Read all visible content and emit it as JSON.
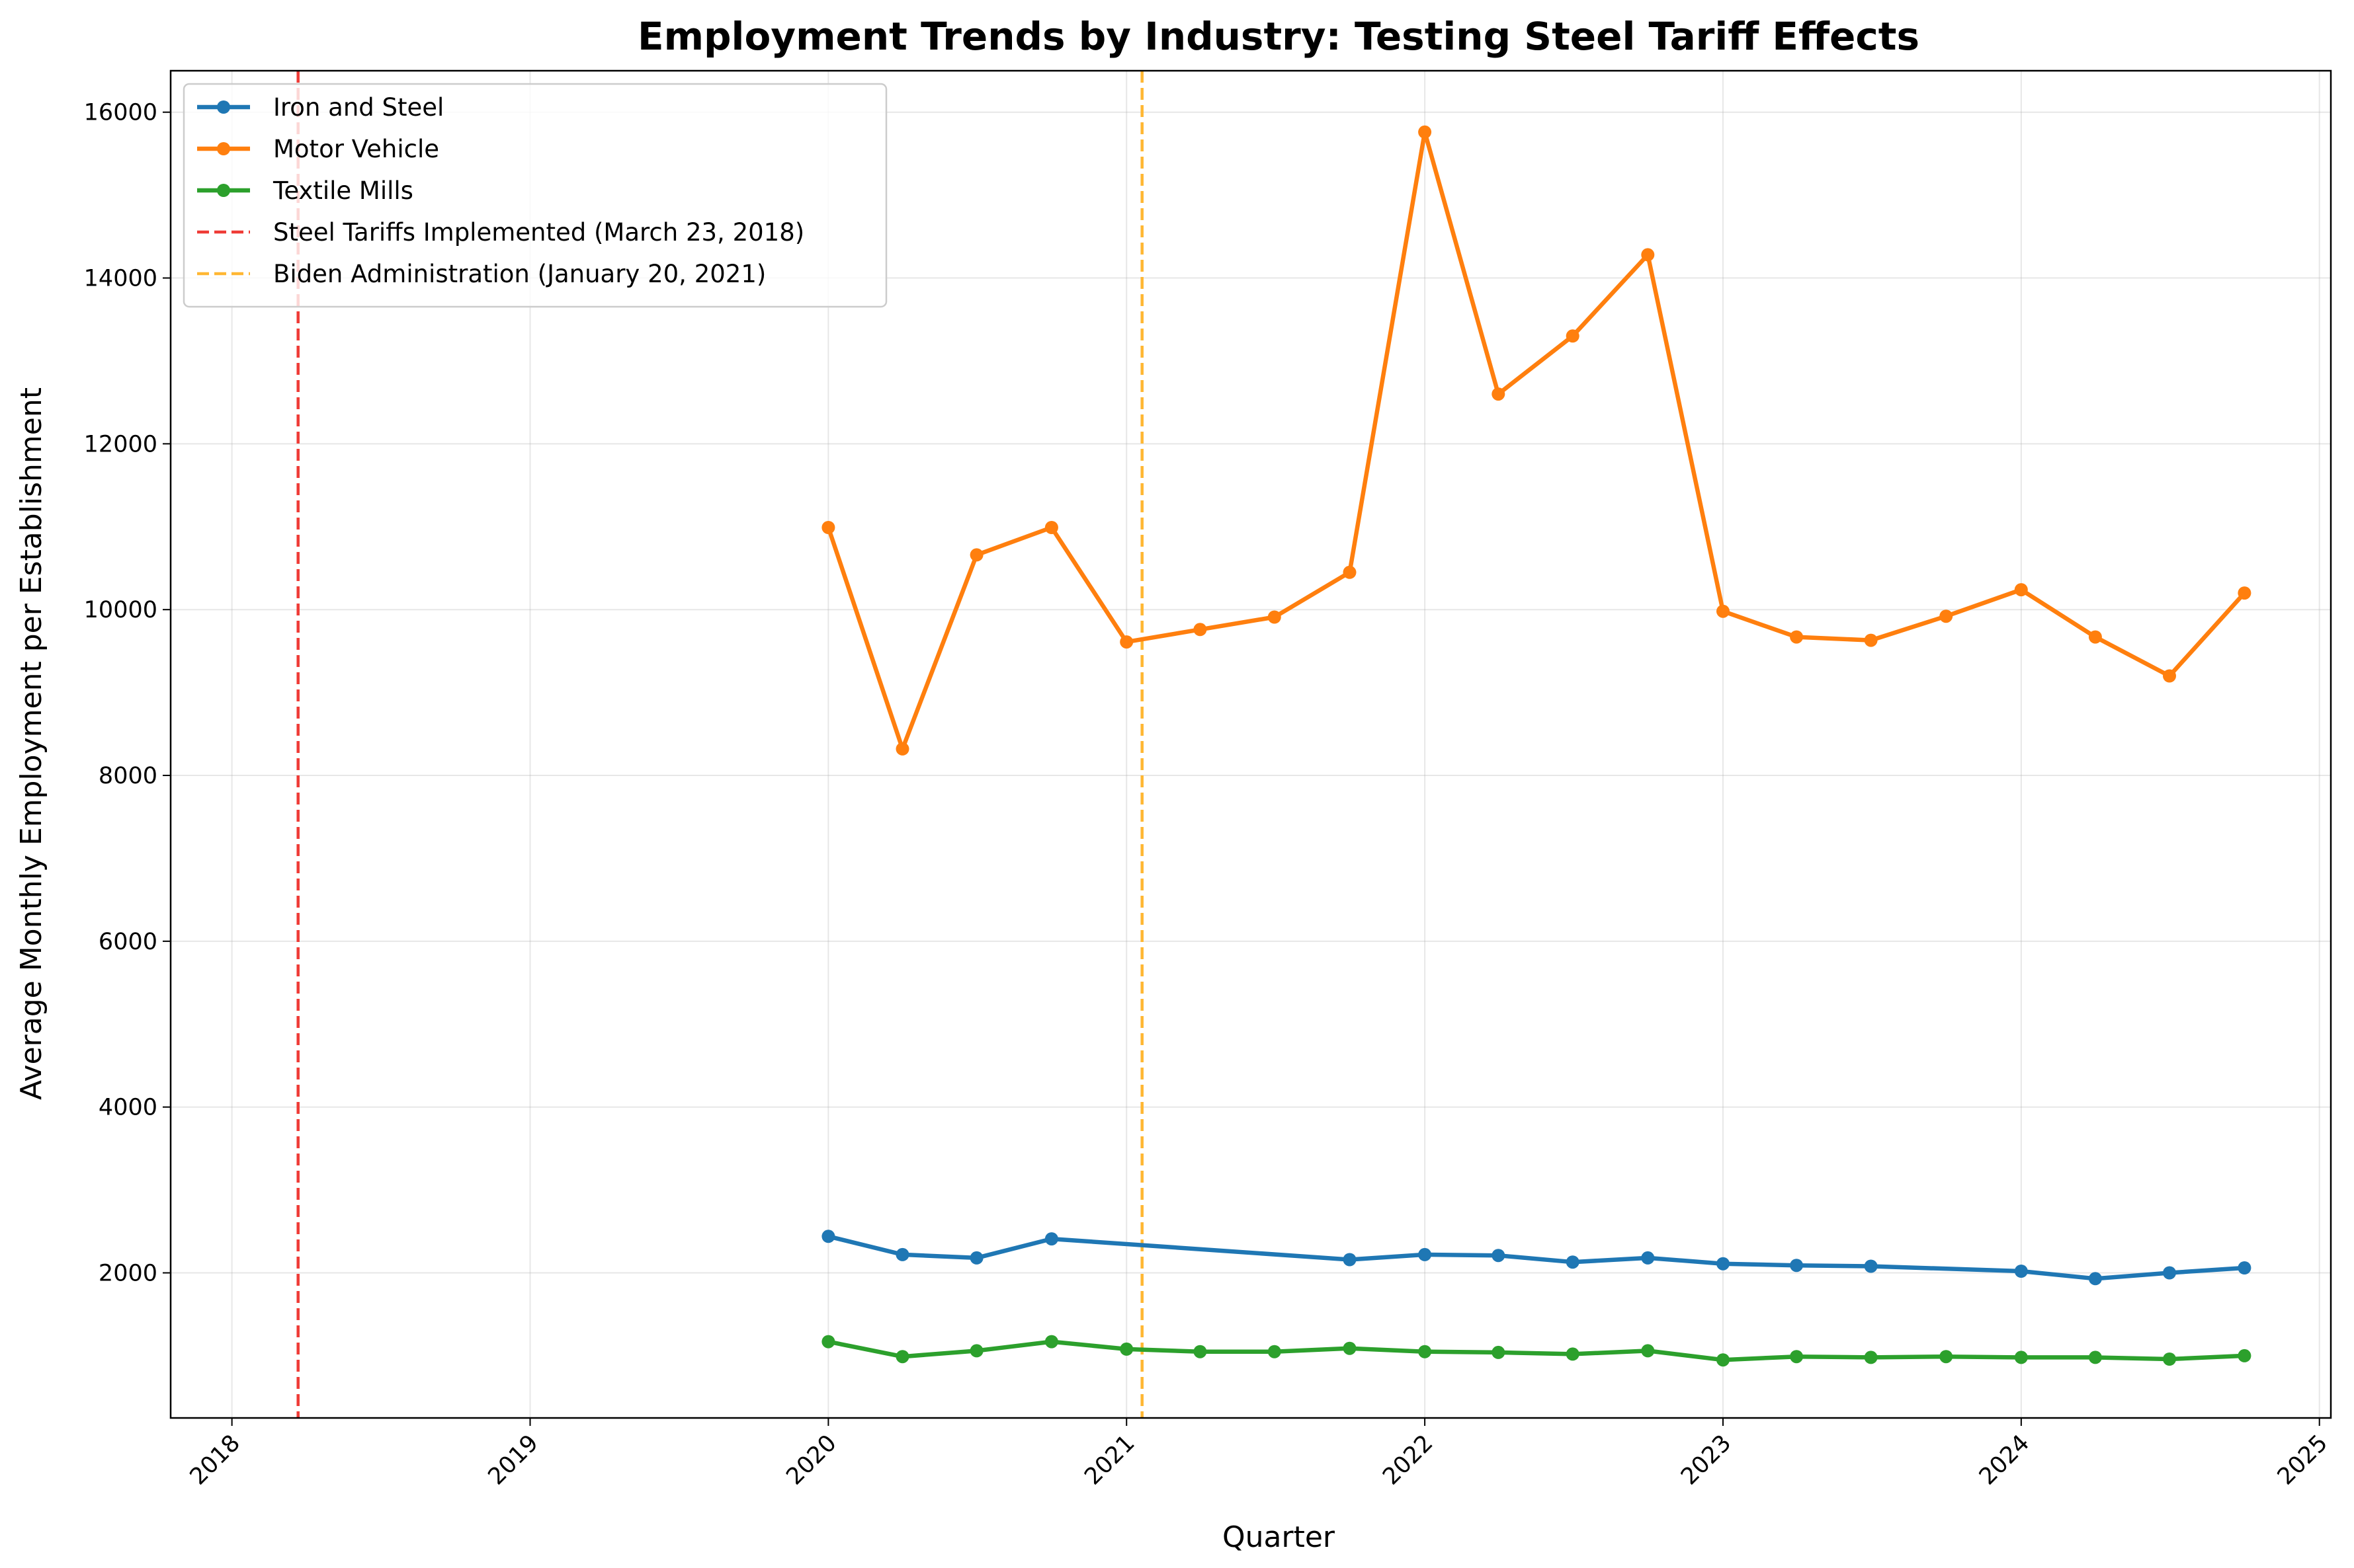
{
  "chart_data": {
    "type": "line",
    "title": "Employment Trends by Industry: Testing Steel Tariff Effects",
    "xlabel": "Quarter",
    "ylabel": "Average Monthly Employment per Establishment",
    "xlim": [
      "2017-10-18",
      "2025-01-15"
    ],
    "ylim": [
      250,
      16500
    ],
    "x_ticks": [
      "2018",
      "2019",
      "2020",
      "2021",
      "2022",
      "2023",
      "2024",
      "2025"
    ],
    "y_ticks": [
      "2000",
      "4000",
      "6000",
      "8000",
      "10000",
      "12000",
      "14000",
      "16000"
    ],
    "grid": true,
    "legend_position": "top-left",
    "series": [
      {
        "name": "Iron and Steel",
        "color": "#1f77b4",
        "x": [
          "2020-01-01",
          "2020-04-01",
          "2020-07-01",
          "2020-10-01",
          "2021-10-01",
          "2022-01-01",
          "2022-04-01",
          "2022-07-01",
          "2022-10-01",
          "2023-01-01",
          "2023-04-01",
          "2023-07-01",
          "2024-01-01",
          "2024-04-01",
          "2024-07-01",
          "2024-10-01"
        ],
        "y": [
          2440,
          2220,
          2180,
          2410,
          2160,
          2220,
          2210,
          2130,
          2180,
          2110,
          2090,
          2080,
          2020,
          1930,
          2000,
          2060
        ]
      },
      {
        "name": "Motor Vehicle",
        "color": "#ff7f0e",
        "x": [
          "2020-01-01",
          "2020-04-01",
          "2020-07-01",
          "2020-10-01",
          "2021-01-01",
          "2021-04-01",
          "2021-07-01",
          "2021-10-01",
          "2022-01-01",
          "2022-04-01",
          "2022-07-01",
          "2022-10-01",
          "2023-01-01",
          "2023-04-01",
          "2023-07-01",
          "2023-10-01",
          "2024-01-01",
          "2024-04-01",
          "2024-07-01",
          "2024-10-01"
        ],
        "y": [
          10990,
          8320,
          10660,
          10990,
          9610,
          9760,
          9910,
          10450,
          15760,
          12600,
          13300,
          14280,
          9980,
          9670,
          9630,
          9920,
          10240,
          9670,
          9200,
          10200
        ]
      },
      {
        "name": "Textile Mills",
        "color": "#2ca02c",
        "x": [
          "2020-01-01",
          "2020-04-01",
          "2020-07-01",
          "2020-10-01",
          "2021-01-01",
          "2021-04-01",
          "2021-07-01",
          "2021-10-01",
          "2022-01-01",
          "2022-04-01",
          "2022-07-01",
          "2022-10-01",
          "2023-01-01",
          "2023-04-01",
          "2023-07-01",
          "2023-10-01",
          "2024-01-01",
          "2024-04-01",
          "2024-07-01",
          "2024-10-01"
        ],
        "y": [
          1170,
          990,
          1060,
          1170,
          1080,
          1050,
          1050,
          1090,
          1050,
          1040,
          1020,
          1060,
          950,
          990,
          980,
          990,
          980,
          980,
          960,
          1000
        ]
      }
    ],
    "reference_lines": [
      {
        "name": "Steel Tariffs Implemented (March 23, 2018)",
        "x": "2018-03-23",
        "color": "#ef3b36"
      },
      {
        "name": "Biden Administration (January 20, 2021)",
        "x": "2021-01-20",
        "color": "#ffb733"
      }
    ]
  }
}
